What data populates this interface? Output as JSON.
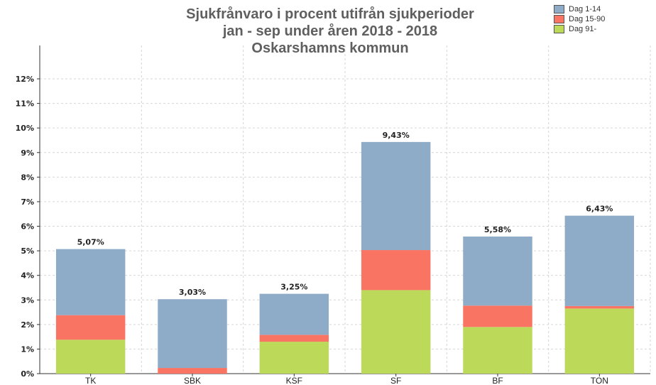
{
  "chart_data": {
    "type": "bar",
    "stacked": true,
    "title": [
      "Sjukfrånvaro i procent utifrån sjukperioder",
      "jan - sep under åren  2018 - 2018",
      "Oskarshamns kommun"
    ],
    "categories": [
      "TK",
      "SBK",
      "KSF",
      "SF",
      "BF",
      "TON"
    ],
    "series": [
      {
        "name": "Dag 91-",
        "color": "#bcd95a",
        "values": [
          1.38,
          0.0,
          1.3,
          3.4,
          1.9,
          2.65
        ]
      },
      {
        "name": "Dag 15-90",
        "color": "#fa7463",
        "values": [
          1.0,
          0.23,
          0.28,
          1.63,
          0.87,
          0.1
        ]
      },
      {
        "name": "Dag 1-14",
        "color": "#8eabc8",
        "values": [
          2.69,
          2.8,
          1.67,
          4.4,
          2.81,
          3.68
        ]
      }
    ],
    "totals": [
      "5,07%",
      "3,03%",
      "3,25%",
      "9,43%",
      "5,58%",
      "6,43%"
    ],
    "ylim": [
      0,
      12
    ],
    "yticks": [
      "0%",
      "1%",
      "2%",
      "3%",
      "4%",
      "5%",
      "6%",
      "7%",
      "8%",
      "9%",
      "10%",
      "11%",
      "12%"
    ],
    "grid": true,
    "legend_position": "top-right"
  },
  "legend": {
    "items": [
      {
        "label": "Dag 1-14",
        "color": "#8eabc8"
      },
      {
        "label": "Dag 15-90",
        "color": "#fa7463"
      },
      {
        "label": "Dag 91-",
        "color": "#bcd95a"
      }
    ]
  }
}
